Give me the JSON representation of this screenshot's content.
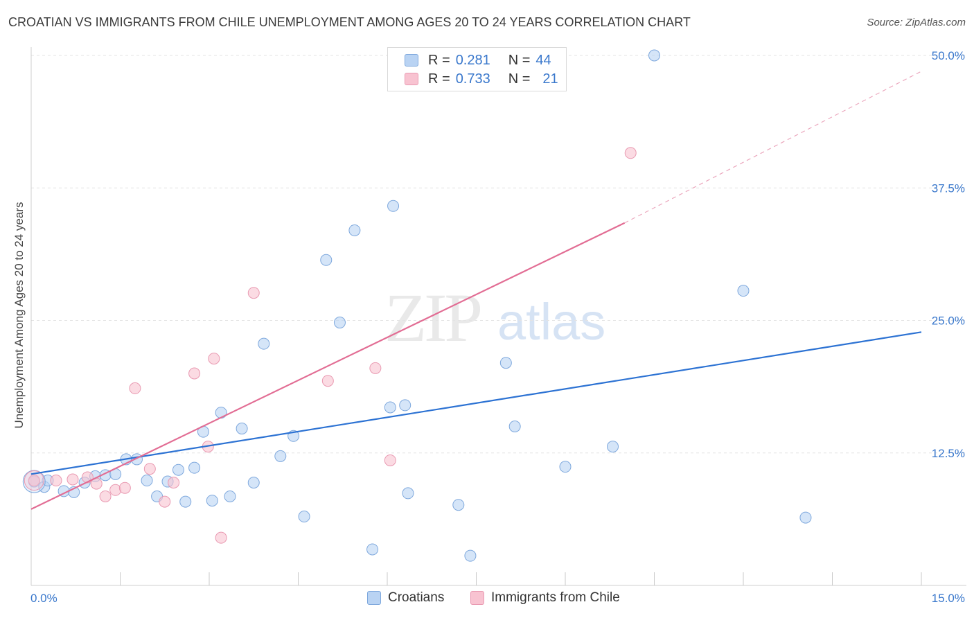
{
  "title": "CROATIAN VS IMMIGRANTS FROM CHILE UNEMPLOYMENT AMONG AGES 20 TO 24 YEARS CORRELATION CHART",
  "source": "Source: ZipAtlas.com",
  "watermark": {
    "zip": "ZIP",
    "atlas": "atlas"
  },
  "colors": {
    "blue_fill": "#b9d3f3",
    "blue_stroke": "#7ea8dd",
    "blue_line": "#2c72d3",
    "pink_fill": "#f8c3d1",
    "pink_stroke": "#e999b1",
    "pink_line": "#e26d94",
    "tick_label": "#3a78cc",
    "grid": "#e3e3e3"
  },
  "legend": {
    "rows": [
      {
        "r_label": "R =",
        "r_value": "0.281",
        "n_label": "N =",
        "n_value": "44"
      },
      {
        "r_label": "R =",
        "r_value": "0.733",
        "n_label": "N =",
        "n_value": "21"
      }
    ]
  },
  "bottom_legend": [
    "Croatians",
    "Immigrants from Chile"
  ],
  "chart_data": {
    "type": "scatter",
    "title": "CROATIAN VS IMMIGRANTS FROM CHILE UNEMPLOYMENT AMONG AGES 20 TO 24 YEARS CORRELATION CHART",
    "xlabel": "",
    "ylabel": "Unemployment Among Ages 20 to 24 years",
    "xlim": [
      0,
      15
    ],
    "ylim": [
      0,
      50
    ],
    "x_tick_labels": [
      "0.0%",
      "15.0%"
    ],
    "y_ticks": [
      12.5,
      25.0,
      37.5,
      50.0
    ],
    "y_tick_labels": [
      "12.5%",
      "25.0%",
      "37.5%",
      "50.0%"
    ],
    "grid": "horizontal dashed",
    "legend_position": "top-center",
    "series": [
      {
        "name": "Croatians",
        "color": "#b9d3f3",
        "points": [
          [
            0.05,
            9.8
          ],
          [
            0.22,
            9.3
          ],
          [
            0.28,
            9.9
          ],
          [
            0.55,
            8.9
          ],
          [
            0.72,
            8.8
          ],
          [
            0.9,
            9.7
          ],
          [
            1.08,
            10.3
          ],
          [
            1.25,
            10.4
          ],
          [
            1.42,
            10.5
          ],
          [
            1.6,
            11.9
          ],
          [
            1.78,
            11.9
          ],
          [
            1.95,
            9.9
          ],
          [
            2.12,
            8.4
          ],
          [
            2.3,
            9.8
          ],
          [
            2.48,
            10.9
          ],
          [
            2.6,
            7.9
          ],
          [
            2.75,
            11.1
          ],
          [
            2.9,
            14.5
          ],
          [
            3.05,
            8.0
          ],
          [
            3.2,
            16.3
          ],
          [
            3.35,
            8.4
          ],
          [
            3.55,
            14.8
          ],
          [
            3.75,
            9.7
          ],
          [
            3.92,
            22.8
          ],
          [
            4.2,
            12.2
          ],
          [
            4.42,
            14.1
          ],
          [
            4.6,
            6.5
          ],
          [
            4.97,
            30.7
          ],
          [
            5.2,
            24.8
          ],
          [
            5.45,
            33.5
          ],
          [
            5.75,
            3.4
          ],
          [
            6.05,
            16.8
          ],
          [
            6.1,
            35.8
          ],
          [
            6.3,
            17.0
          ],
          [
            6.35,
            8.7
          ],
          [
            7.2,
            7.6
          ],
          [
            7.4,
            2.8
          ],
          [
            8.0,
            21.0
          ],
          [
            8.15,
            15.0
          ],
          [
            9.0,
            11.2
          ],
          [
            9.8,
            13.1
          ],
          [
            10.5,
            50.0
          ],
          [
            12.0,
            27.8
          ],
          [
            13.05,
            6.4
          ]
        ]
      },
      {
        "name": "Immigrants from Chile",
        "color": "#f8c3d1",
        "points": [
          [
            0.05,
            9.9
          ],
          [
            0.42,
            9.9
          ],
          [
            0.7,
            10.0
          ],
          [
            0.95,
            10.2
          ],
          [
            1.1,
            9.6
          ],
          [
            1.25,
            8.4
          ],
          [
            1.42,
            9.0
          ],
          [
            1.58,
            9.2
          ],
          [
            1.75,
            18.6
          ],
          [
            2.0,
            11.0
          ],
          [
            2.25,
            7.9
          ],
          [
            2.4,
            9.7
          ],
          [
            2.75,
            20.0
          ],
          [
            2.98,
            13.1
          ],
          [
            3.08,
            21.4
          ],
          [
            3.2,
            4.5
          ],
          [
            3.75,
            27.6
          ],
          [
            5.0,
            19.3
          ],
          [
            5.8,
            20.5
          ],
          [
            6.05,
            11.8
          ],
          [
            10.1,
            40.8
          ]
        ]
      }
    ],
    "trendlines": [
      {
        "name": "Croatians",
        "x": [
          0,
          15
        ],
        "y": [
          10.5,
          23.9
        ]
      },
      {
        "name": "Immigrants from Chile",
        "x": [
          0,
          10.0
        ],
        "y": [
          7.2,
          34.2
        ],
        "dashed_extension": {
          "x": [
            10.0,
            15.0
          ],
          "y": [
            34.2,
            48.5
          ]
        }
      }
    ]
  }
}
